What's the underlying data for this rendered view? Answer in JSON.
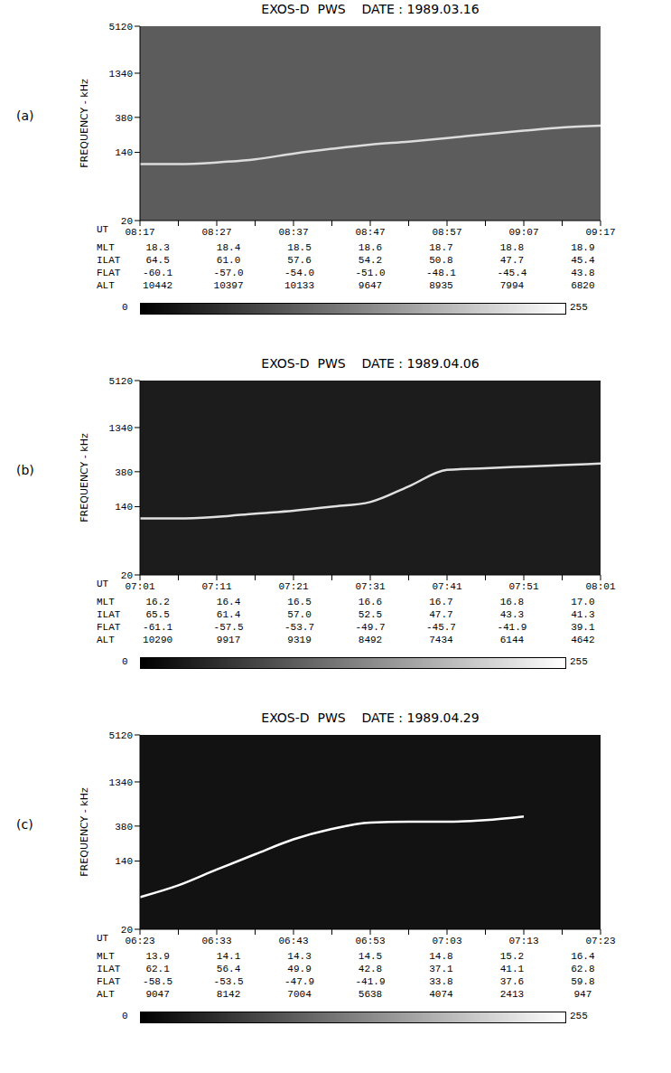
{
  "chart_data": [
    {
      "type": "line",
      "panel": "(a)",
      "title": "EXOS-D  PWS    DATE : 1989.03.16",
      "y_label": "FREQUENCY - kHz",
      "x_label": "UT",
      "categories": [
        "08:17",
        null,
        "08:27",
        null,
        "08:37",
        null,
        "08:47",
        null,
        "08:57",
        null,
        "09:07",
        null,
        "09:17"
      ],
      "values": [
        100,
        100,
        105,
        115,
        135,
        155,
        175,
        190,
        210,
        235,
        260,
        285,
        300
      ],
      "color": "#dcdcdc",
      "log": "y",
      "ylim": [
        20,
        5120
      ],
      "yticks": [
        20,
        140,
        380,
        1340,
        5120
      ],
      "grid": false,
      "x_rows": [
        {
          "label": "MLT",
          "values": [
            "18.3",
            "18.4",
            "18.5",
            "18.6",
            "18.7",
            "18.8",
            "18.9"
          ]
        },
        {
          "label": "ILAT",
          "values": [
            "64.5",
            "61.0",
            "57.6",
            "54.2",
            "50.8",
            "47.7",
            "45.4"
          ]
        },
        {
          "label": "FLAT",
          "values": [
            "-60.1",
            "-57.0",
            "-54.0",
            "-51.0",
            "-48.1",
            "-45.4",
            "43.8"
          ]
        },
        {
          "label": "ALT",
          "values": [
            "10442",
            "10397",
            "10133",
            "9647",
            "8935",
            "7994",
            "6820"
          ]
        }
      ],
      "colorbar": {
        "range": [
          0,
          255
        ],
        "ticks": [
          0,
          255
        ]
      }
    },
    {
      "type": "line",
      "panel": "(b)",
      "title": "EXOS-D  PWS    DATE : 1989.04.06",
      "y_label": "FREQUENCY - kHz",
      "x_label": "UT",
      "categories": [
        "07:01",
        null,
        "07:11",
        null,
        "07:21",
        null,
        "07:31",
        null,
        "07:41",
        null,
        "07:51",
        null,
        "08:01"
      ],
      "values": [
        100,
        100,
        105,
        115,
        125,
        140,
        160,
        250,
        400,
        420,
        440,
        460,
        480
      ],
      "color": "#e0e0e0",
      "log": "y",
      "ylim": [
        20,
        5120
      ],
      "yticks": [
        20,
        140,
        380,
        1340,
        5120
      ],
      "grid": false,
      "x_rows": [
        {
          "label": "MLT",
          "values": [
            "16.2",
            "16.4",
            "16.5",
            "16.6",
            "16.7",
            "16.8",
            "17.0"
          ]
        },
        {
          "label": "ILAT",
          "values": [
            "65.5",
            "61.4",
            "57.0",
            "52.5",
            "47.7",
            "43.3",
            "41.3"
          ]
        },
        {
          "label": "FLAT",
          "values": [
            "-61.1",
            "-57.5",
            "-53.7",
            "-49.7",
            "-45.7",
            "-41.9",
            "39.1"
          ]
        },
        {
          "label": "ALT",
          "values": [
            "10290",
            "9917",
            "9319",
            "8492",
            "7434",
            "6144",
            "4642"
          ]
        }
      ],
      "colorbar": {
        "range": [
          0,
          255
        ],
        "ticks": [
          0,
          255
        ]
      }
    },
    {
      "type": "line",
      "panel": "(c)",
      "title": "EXOS-D  PWS    DATE : 1989.04.29",
      "y_label": "FREQUENCY - kHz",
      "x_label": "UT",
      "categories": [
        "06:23",
        null,
        "06:33",
        null,
        "06:43",
        null,
        "06:53",
        null,
        "07:03",
        null,
        "07:13",
        null,
        "07:23"
      ],
      "values": [
        50,
        70,
        110,
        170,
        260,
        350,
        420,
        430,
        430,
        450,
        500,
        null,
        null
      ],
      "color": "#ffffff",
      "log": "y",
      "ylim": [
        20,
        5120
      ],
      "yticks": [
        20,
        140,
        380,
        1340,
        5120
      ],
      "grid": false,
      "x_rows": [
        {
          "label": "MLT",
          "values": [
            "13.9",
            "14.1",
            "14.3",
            "14.5",
            "14.8",
            "15.2",
            "16.4"
          ]
        },
        {
          "label": "ILAT",
          "values": [
            "62.1",
            "56.4",
            "49.9",
            "42.8",
            "37.1",
            "41.1",
            "62.8"
          ]
        },
        {
          "label": "FLAT",
          "values": [
            "-58.5",
            "-53.5",
            "-47.9",
            "-41.9",
            "33.8",
            "37.6",
            "59.8"
          ]
        },
        {
          "label": "ALT",
          "values": [
            "9047",
            "8142",
            "7004",
            "5638",
            "4074",
            "2413",
            "947"
          ]
        }
      ],
      "colorbar": {
        "range": [
          0,
          255
        ],
        "ticks": [
          0,
          255
        ]
      }
    }
  ]
}
